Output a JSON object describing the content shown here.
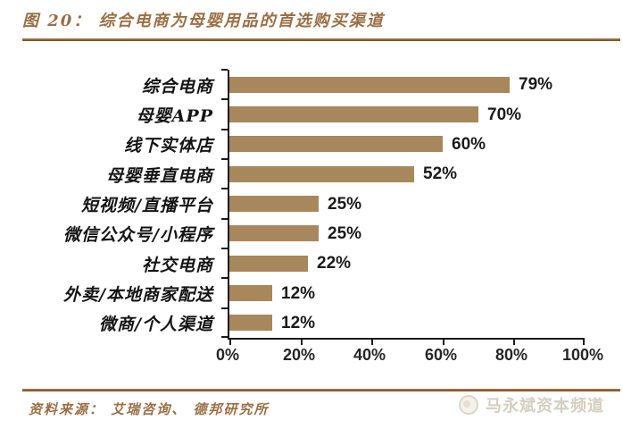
{
  "figure": {
    "title": "图 20： 综合电商为母婴用品的首选购买渠道",
    "source": "资料来源： 艾瑞咨询、 德邦研究所",
    "watermark": "马永斌资本频道",
    "watermark_icon": "circle-logo-icon"
  },
  "colors": {
    "bar": "#a8875c",
    "title_text": "#9a6f45",
    "rule": "#8d5f33",
    "value_text": "#1a1a1a",
    "axis_text": "#262626",
    "watermark_text": "#d5cec0"
  },
  "chart_data": {
    "type": "bar",
    "orientation": "horizontal",
    "title": "综合电商为母婴用品的首选购买渠道",
    "categories": [
      "综合电商",
      "母婴APP",
      "线下实体店",
      "母婴垂直电商",
      "短视频/直播平台",
      "微信公众号/小程序",
      "社交电商",
      "外卖/本地商家配送",
      "微商/个人渠道"
    ],
    "values": [
      79,
      70,
      60,
      52,
      25,
      25,
      22,
      12,
      12
    ],
    "value_labels": [
      "79%",
      "70%",
      "60%",
      "52%",
      "25%",
      "25%",
      "22%",
      "12%",
      "12%"
    ],
    "x_ticks": [
      0,
      20,
      40,
      60,
      80,
      100
    ],
    "x_tick_labels": [
      "0%",
      "20%",
      "40%",
      "60%",
      "80%",
      "100%"
    ],
    "xlim": [
      0,
      100
    ],
    "grid": false,
    "legend": false,
    "value_label_position": "outside-end"
  }
}
